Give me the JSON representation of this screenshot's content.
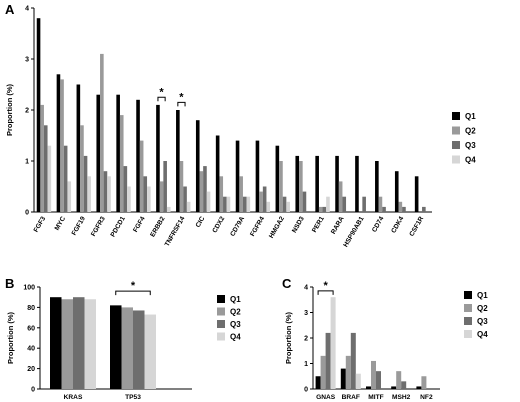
{
  "chart_data": [
    {
      "panel_label": "A",
      "type": "bar",
      "ylabel": "Proportion (%)",
      "ylim": [
        0,
        4
      ],
      "yticks": [
        "0",
        "1",
        "2",
        "3",
        "4"
      ],
      "categories": [
        "FGF3",
        "MYC",
        "FGF19",
        "FGFR3",
        "PDCD1",
        "FGF4",
        "ERBB2",
        "TNFRSF14",
        "CIC",
        "CDX2",
        "CD79A",
        "FGFR4",
        "HMGA2",
        "NSD3",
        "PER1",
        "RARA",
        "HSP90AB1",
        "CD74",
        "CDK4",
        "CSF1R"
      ],
      "series": [
        {
          "name": "Q1",
          "color": "#000000",
          "values": [
            3.8,
            2.7,
            2.5,
            2.3,
            2.3,
            2.2,
            2.1,
            2.0,
            1.8,
            1.5,
            1.4,
            1.4,
            1.3,
            1.1,
            1.1,
            1.1,
            1.1,
            1.0,
            0.8,
            0.7
          ]
        },
        {
          "name": "Q2",
          "color": "#9a9a9a",
          "values": [
            2.1,
            2.6,
            1.7,
            3.1,
            1.9,
            1.4,
            0.6,
            1.0,
            0.8,
            0.7,
            0.7,
            0.4,
            1.0,
            1.0,
            0.1,
            0.6,
            0.0,
            0.3,
            0.2,
            0.0
          ]
        },
        {
          "name": "Q3",
          "color": "#6e6e6e",
          "values": [
            1.7,
            1.3,
            1.1,
            0.8,
            0.9,
            0.7,
            1.0,
            0.5,
            0.9,
            0.3,
            0.3,
            0.5,
            0.3,
            0.4,
            0.1,
            0.3,
            0.3,
            0.1,
            0.1,
            0.1
          ]
        },
        {
          "name": "Q4",
          "color": "#d6d6d6",
          "values": [
            1.3,
            0.6,
            0.7,
            0.7,
            0.5,
            0.5,
            0.1,
            0.2,
            0.4,
            0.3,
            0.3,
            0.2,
            0.2,
            0.0,
            0.3,
            0.0,
            0.0,
            0.0,
            0.0,
            0.0
          ]
        }
      ],
      "significance": [
        {
          "label": "*",
          "from_category": "ERBB2",
          "to_category": "ERBB2",
          "from_series": "Q1",
          "to_series": "Q3",
          "level": 2.25
        },
        {
          "label": "*",
          "from_category": "TNFRSF14",
          "to_category": "TNFRSF14",
          "from_series": "Q1",
          "to_series": "Q3",
          "level": 2.15
        }
      ],
      "legend": "right"
    },
    {
      "panel_label": "B",
      "type": "bar",
      "ylabel": "Proportion (%)",
      "ylim": [
        0,
        100
      ],
      "yticks": [
        "0",
        "20",
        "40",
        "60",
        "80",
        "100"
      ],
      "categories": [
        "KRAS",
        "TP53"
      ],
      "series": [
        {
          "name": "Q1",
          "color": "#000000",
          "values": [
            90,
            82
          ]
        },
        {
          "name": "Q2",
          "color": "#9a9a9a",
          "values": [
            88,
            80
          ]
        },
        {
          "name": "Q3",
          "color": "#6e6e6e",
          "values": [
            90,
            77
          ]
        },
        {
          "name": "Q4",
          "color": "#d6d6d6",
          "values": [
            88,
            73
          ]
        }
      ],
      "significance": [
        {
          "label": "*",
          "from_category": "TP53",
          "to_category": "TP53",
          "from_series": "Q1",
          "to_series": "Q4",
          "level": 96
        }
      ],
      "legend": "right"
    },
    {
      "panel_label": "C",
      "type": "bar",
      "ylabel": "Proportion (%)",
      "ylim": [
        0,
        4
      ],
      "yticks": [
        "0",
        "1",
        "2",
        "3",
        "4"
      ],
      "categories": [
        "GNAS",
        "BRAF",
        "MITF",
        "MSH2",
        "NF2"
      ],
      "series": [
        {
          "name": "Q1",
          "color": "#000000",
          "values": [
            0.5,
            0.8,
            0.1,
            0.1,
            0.1
          ]
        },
        {
          "name": "Q2",
          "color": "#9a9a9a",
          "values": [
            1.3,
            1.3,
            1.1,
            0.7,
            0.5
          ]
        },
        {
          "name": "Q3",
          "color": "#6e6e6e",
          "values": [
            2.2,
            2.2,
            0.7,
            0.3,
            0.0
          ]
        },
        {
          "name": "Q4",
          "color": "#d6d6d6",
          "values": [
            3.6,
            0.6,
            0.0,
            0.0,
            0.0
          ]
        }
      ],
      "significance": [
        {
          "label": "*",
          "from_category": "GNAS",
          "to_category": "GNAS",
          "from_series": "Q1",
          "to_series": "Q4",
          "level": 3.85
        }
      ],
      "legend": "right"
    }
  ]
}
